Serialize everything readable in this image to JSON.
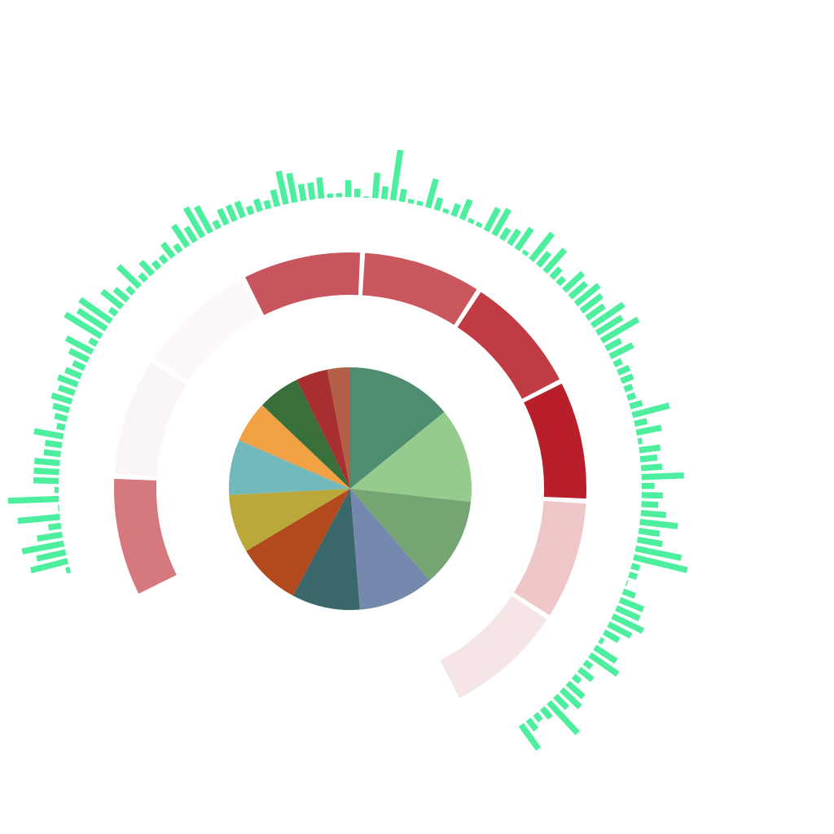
{
  "chart_data": [
    {
      "type": "pie",
      "title": "",
      "slices": [
        {
          "value": 14.0,
          "color": "#4e8d6f"
        },
        {
          "value": 12.5,
          "color": "#95cb8d"
        },
        {
          "value": 11.8,
          "color": "#74a573"
        },
        {
          "value": 10.0,
          "color": "#7489ad"
        },
        {
          "value": 9.0,
          "color": "#3a676a"
        },
        {
          "value": 8.5,
          "color": "#b24a1e"
        },
        {
          "value": 7.7,
          "color": "#bba83a"
        },
        {
          "value": 7.3,
          "color": "#73b8bb"
        },
        {
          "value": 5.5,
          "color": "#f1a144"
        },
        {
          "value": 5.6,
          "color": "#386f3b"
        },
        {
          "value": 4.2,
          "color": "#a82f2f"
        },
        {
          "value": 3.0,
          "color": "#b46048"
        }
      ]
    },
    {
      "type": "heatmap",
      "layout": "radial-segments",
      "color_scale": [
        "#fbf6f6",
        "#b81f2a"
      ],
      "segments": [
        {
          "value": 0.55,
          "color": "#d6797e"
        },
        {
          "value": 0.03,
          "color": "#fbf6f6"
        },
        {
          "value": 0.02,
          "color": "#fdf9fa"
        },
        {
          "value": 0.72,
          "color": "#c8545d"
        },
        {
          "value": 0.72,
          "color": "#ca565e"
        },
        {
          "value": 0.82,
          "color": "#c13b45"
        },
        {
          "value": 1.0,
          "color": "#b81f2a"
        },
        {
          "value": 0.22,
          "color": "#efc7c9"
        },
        {
          "value": 0.1,
          "color": "#f6e5e6"
        }
      ]
    },
    {
      "type": "bar",
      "layout": "radial",
      "color": "#4def9f",
      "values": [
        1,
        9,
        7,
        10,
        6,
        3,
        10,
        0,
        12,
        1,
        6,
        6,
        6,
        4,
        4,
        7,
        2,
        3,
        4,
        5,
        4,
        5,
        4,
        3,
        5,
        7,
        2,
        10,
        8,
        9,
        2,
        6,
        4,
        2,
        7,
        2,
        4,
        2,
        2,
        4,
        2,
        6,
        4,
        8,
        7,
        2,
        4,
        4,
        4,
        2,
        3,
        2,
        4,
        8,
        7,
        4,
        4,
        5,
        1,
        1,
        4,
        2,
        0,
        6,
        3,
        12,
        3,
        1,
        1,
        7,
        3,
        1,
        3,
        5,
        1,
        1,
        6,
        7,
        3,
        4,
        6,
        1,
        8,
        4,
        7,
        3,
        2,
        6,
        5,
        7,
        6,
        5,
        9,
        7,
        10,
        4,
        6,
        2,
        3,
        3,
        2,
        2,
        3,
        9,
        3,
        6,
        1,
        5,
        4,
        5,
        10,
        3,
        5,
        4,
        6,
        9,
        5,
        6,
        11,
        13,
        2,
        2,
        0,
        3,
        6,
        6,
        8,
        6,
        4,
        1,
        6,
        8,
        2,
        4,
        2,
        5,
        6,
        4,
        10,
        3,
        2,
        3,
        7
      ]
    }
  ]
}
